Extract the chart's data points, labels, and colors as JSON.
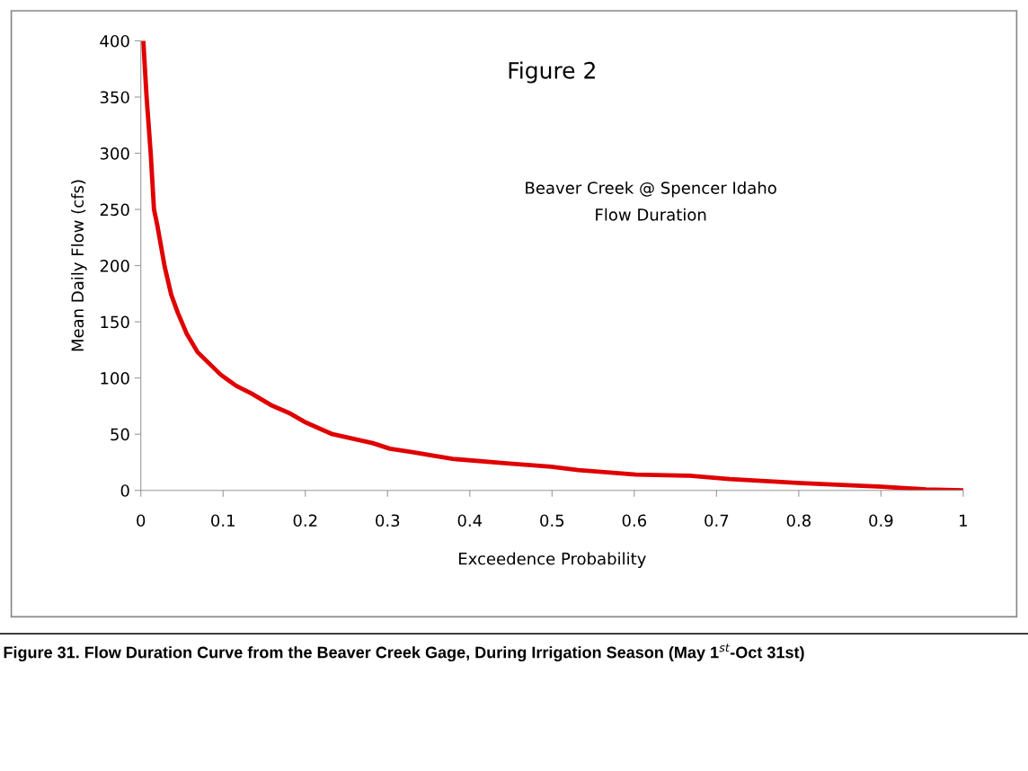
{
  "chart_data": {
    "type": "line",
    "title": "Figure 2",
    "subtitle": "Beaver Creek @ Spencer Idaho\nFlow Duration",
    "xlabel": "Exceedence Probability",
    "ylabel": "Mean Daily Flow (cfs)",
    "annotations": [
      "Figure 31. Flow Duration Curve from the Beaver Creek Gage, During Irrigation Season (May 1$^{st}$-Oct 31st)"
    ],
    "series": [
      {
        "color": "#e00000",
        "x": [
          0.003,
          0.007,
          0.012,
          0.016,
          0.02,
          0.029,
          0.037,
          0.045,
          0.056,
          0.069,
          0.097,
          0.116,
          0.135,
          0.158,
          0.18,
          0.199,
          0.233,
          0.282,
          0.303,
          0.33,
          0.379,
          0.445,
          0.499,
          0.532,
          0.602,
          0.667,
          0.716,
          0.803,
          0.901,
          0.955,
          1.0
        ],
        "values": [
          400,
          350,
          300,
          250,
          236,
          199,
          174,
          158,
          139,
          123,
          103,
          93,
          86,
          76,
          69,
          61,
          50,
          42,
          37,
          34,
          28,
          24,
          21,
          18,
          14,
          13,
          10,
          6.4,
          3.2,
          0.8,
          0
        ]
      }
    ],
    "xlim": [
      0,
      1
    ],
    "xticks": [
      0,
      0.1,
      0.2,
      0.3,
      0.4,
      0.5,
      0.6,
      0.7,
      0.8,
      0.9,
      1
    ],
    "ylim": [
      0,
      400
    ],
    "yticks": [
      0,
      50,
      100,
      150,
      200,
      250,
      300,
      350,
      400
    ],
    "grid": false,
    "legend": false,
    "marker": "none",
    "line_style": "solid"
  }
}
